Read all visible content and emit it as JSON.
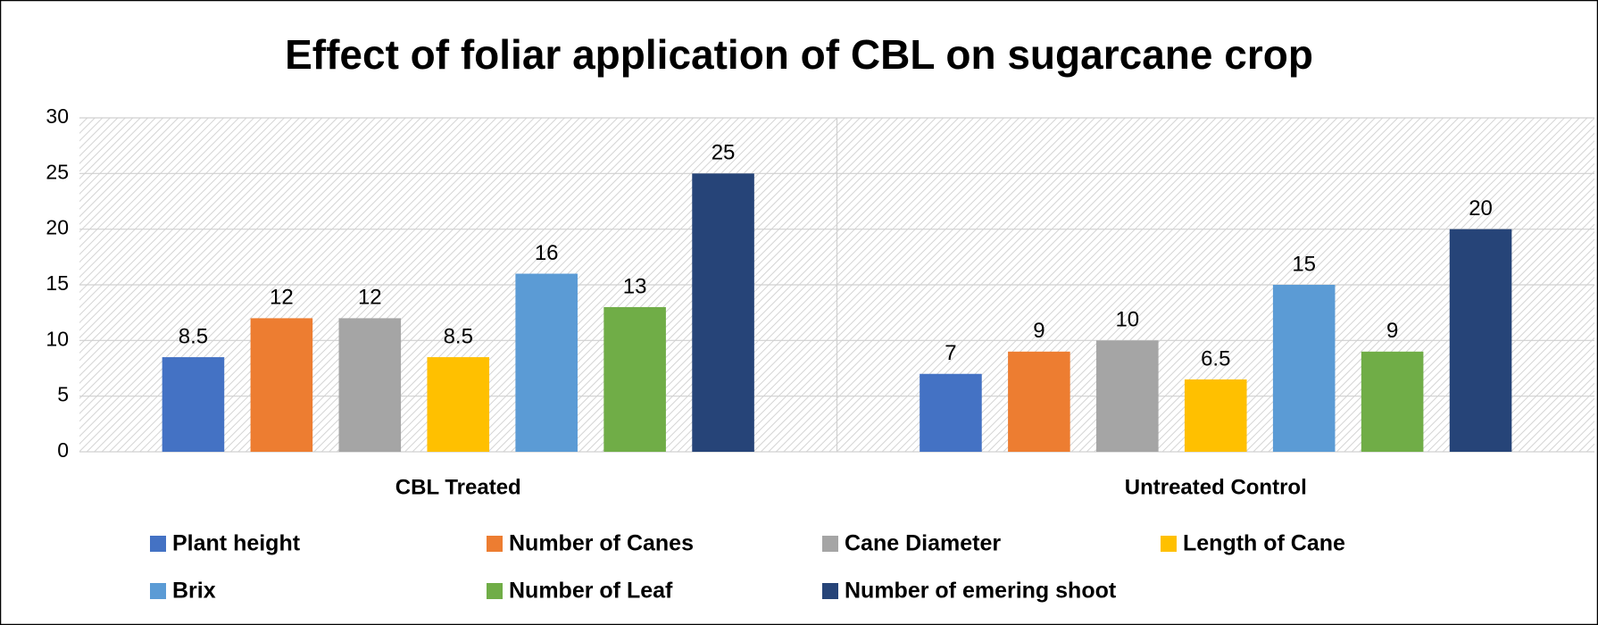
{
  "chart_data": {
    "type": "bar",
    "title": "Effect of foliar application of CBL on sugarcane crop",
    "categories": [
      "CBL Treated",
      "Untreated Control"
    ],
    "series": [
      {
        "name": "Plant height",
        "color": "#4472c4",
        "values": [
          8.5,
          7
        ]
      },
      {
        "name": "Number of Canes",
        "color": "#ed7d31",
        "values": [
          12,
          9
        ]
      },
      {
        "name": "Cane Diameter",
        "color": "#a5a5a5",
        "values": [
          12,
          10
        ]
      },
      {
        "name": "Length of Cane",
        "color": "#ffc000",
        "values": [
          8.5,
          6.5
        ]
      },
      {
        "name": "Brix",
        "color": "#5b9bd5",
        "values": [
          16,
          15
        ]
      },
      {
        "name": "Number of Leaf",
        "color": "#70ad47",
        "values": [
          13,
          9
        ]
      },
      {
        "name": "Number of emering shoot",
        "color": "#264478",
        "values": [
          25,
          20
        ]
      }
    ],
    "ylim": [
      0,
      30
    ],
    "yticks": [
      0,
      5,
      10,
      15,
      20,
      25,
      30
    ],
    "grid": true,
    "legend": "bottom"
  }
}
